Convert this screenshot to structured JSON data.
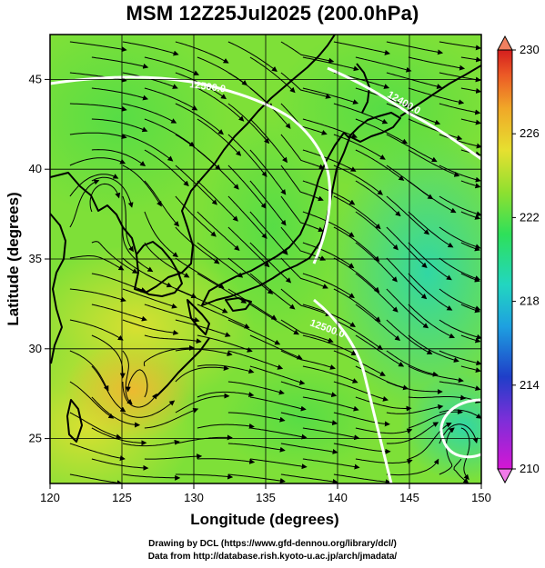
{
  "title": "MSM 12Z25Jul2025 (200.0hPa)",
  "chart_data": {
    "type": "heatmap",
    "xlabel": "Longitude (degrees)",
    "ylabel": "Latitude  (degrees)",
    "xlim": [
      120,
      150
    ],
    "ylim": [
      22.5,
      47.5
    ],
    "x_ticks": [
      "120",
      "125",
      "130",
      "135",
      "140",
      "145",
      "150"
    ],
    "y_ticks": [
      "25",
      "30",
      "35",
      "40",
      "45"
    ],
    "colorbar": {
      "min": 210,
      "max": 230,
      "ticks": [
        "210",
        "214",
        "218",
        "222",
        "226",
        "230"
      ],
      "colors": [
        "#d417d4",
        "#7a2fd8",
        "#1f3ec8",
        "#1ea0e0",
        "#22d6c0",
        "#2ee05a",
        "#8ee030",
        "#e6e030",
        "#f0a828",
        "#ec5a26",
        "#d41e1e"
      ]
    },
    "contour_labels": [
      "12500.0",
      "12400.0",
      "12500.0"
    ],
    "grid": true
  },
  "credits": {
    "line1": "Drawing by DCL (https://www.gfd-dennou.org/library/dcl/)",
    "line2": "Data from http://database.rish.kyoto-u.ac.jp/arch/jmadata/"
  }
}
